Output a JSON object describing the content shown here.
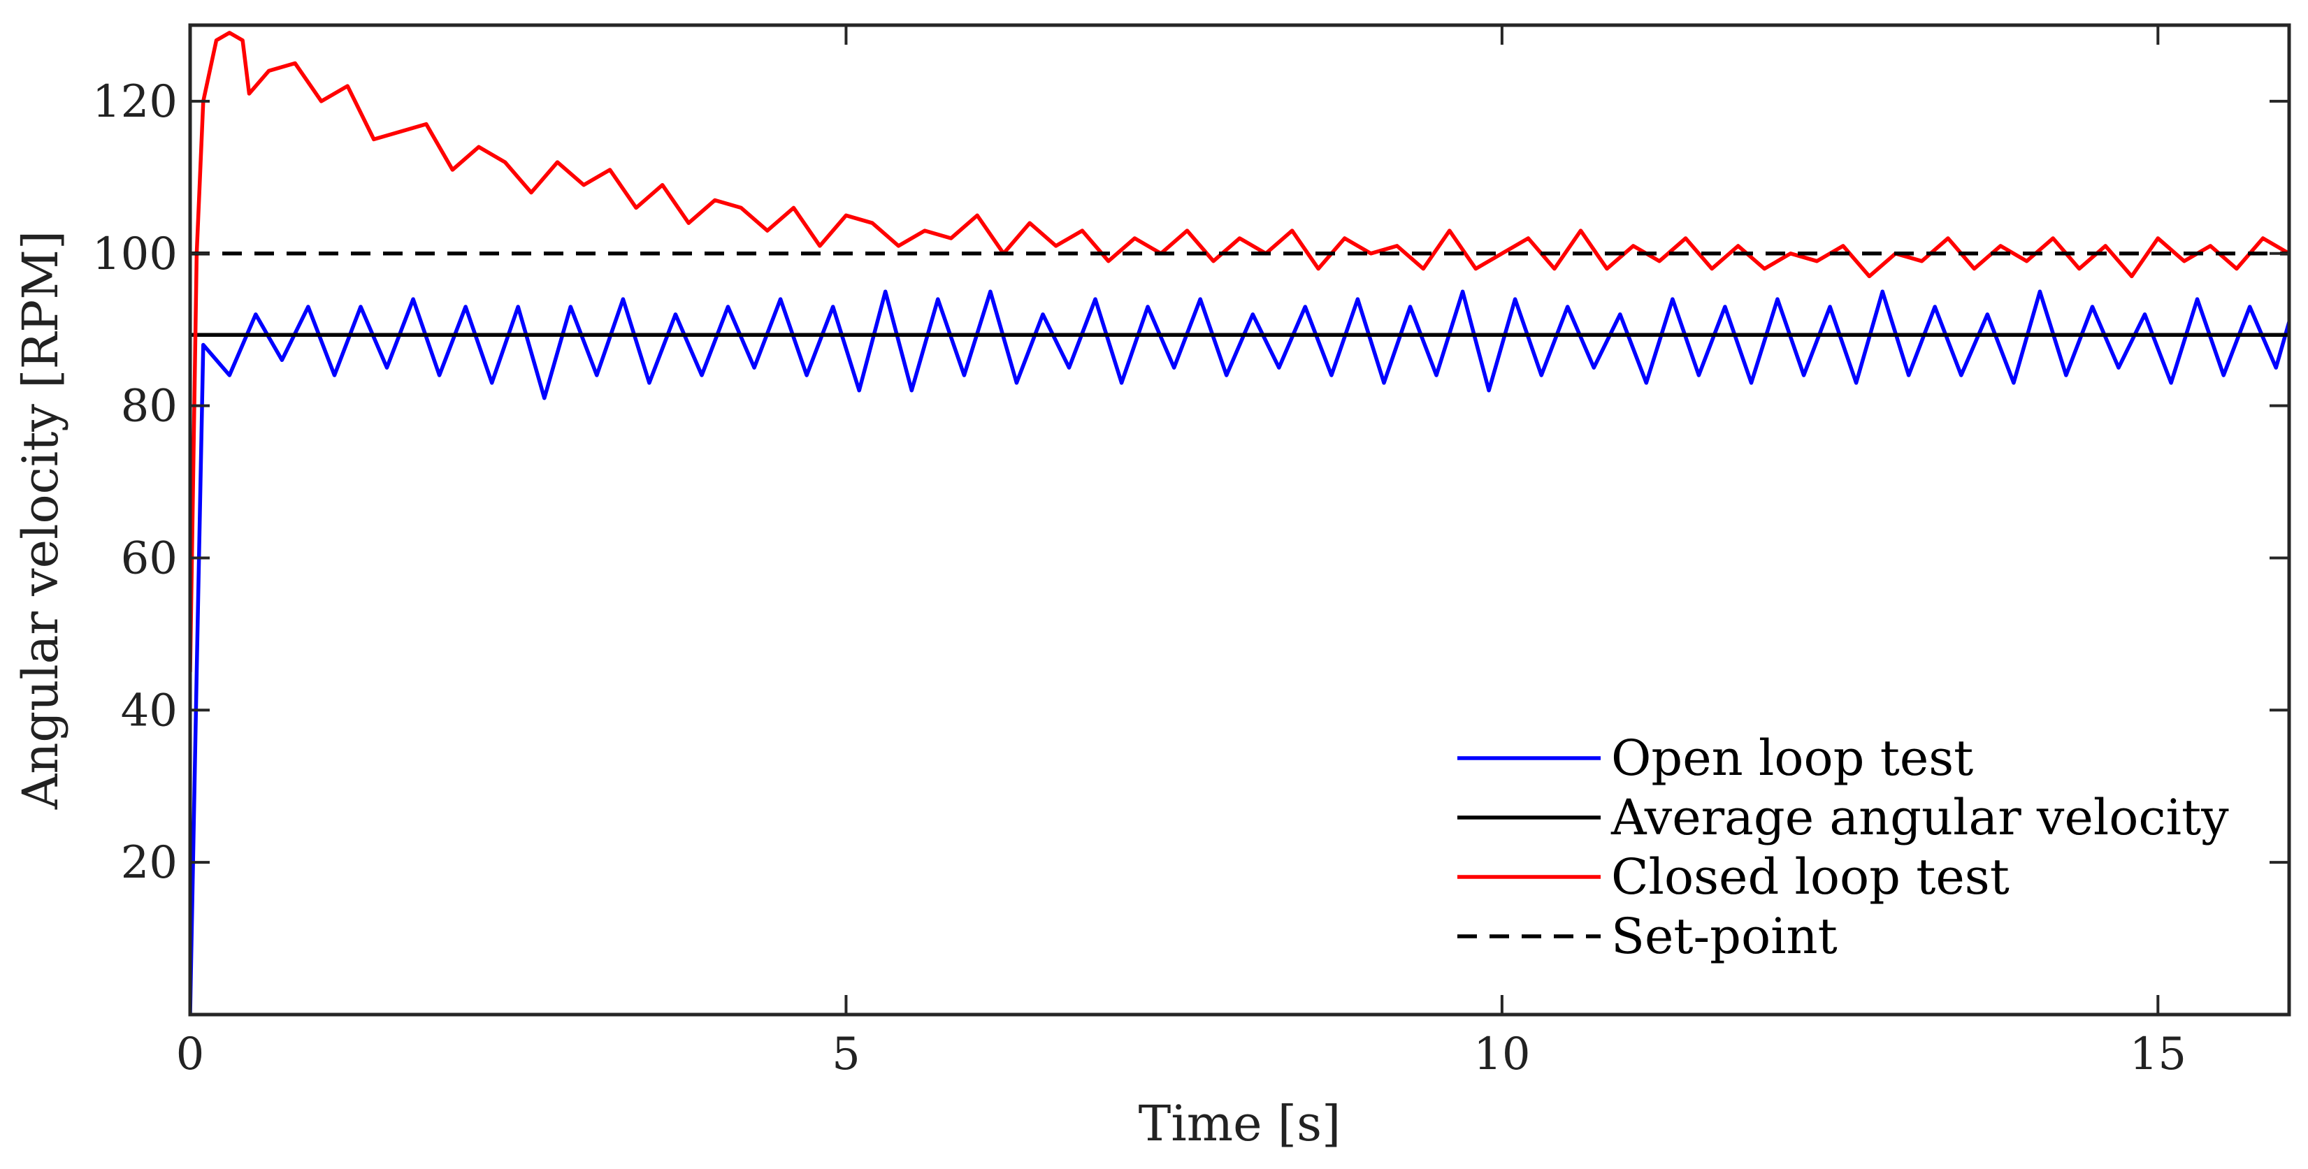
{
  "chart_data": {
    "type": "line",
    "title": "",
    "xlabel": "Time [s]",
    "ylabel": "Angular velocity [RPM]",
    "xlim": [
      0,
      16
    ],
    "ylim": [
      0,
      130
    ],
    "grid": false,
    "legend_position": "bottom-right",
    "x_ticks": [
      0,
      5,
      10,
      15
    ],
    "x_tick_labels": [
      "0",
      "5",
      "10",
      "15"
    ],
    "y_ticks": [
      20,
      40,
      60,
      80,
      100,
      120
    ],
    "y_tick_labels": [
      "20",
      "40",
      "60",
      "80",
      "100",
      "120"
    ],
    "series": [
      {
        "name": "Open loop test",
        "color": "#0000ff",
        "style": "solid",
        "x": [
          0,
          0.05,
          0.1,
          0.3,
          0.5,
          0.7,
          0.9,
          1.1,
          1.3,
          1.5,
          1.7,
          1.9,
          2.1,
          2.3,
          2.5,
          2.7,
          2.9,
          3.1,
          3.3,
          3.5,
          3.7,
          3.9,
          4.1,
          4.3,
          4.5,
          4.7,
          4.9,
          5.1,
          5.3,
          5.5,
          5.7,
          5.9,
          6.1,
          6.3,
          6.5,
          6.7,
          6.9,
          7.1,
          7.3,
          7.5,
          7.7,
          7.9,
          8.1,
          8.3,
          8.5,
          8.7,
          8.9,
          9.1,
          9.3,
          9.5,
          9.7,
          9.9,
          10.1,
          10.3,
          10.5,
          10.7,
          10.9,
          11.1,
          11.3,
          11.5,
          11.7,
          11.9,
          12.1,
          12.3,
          12.5,
          12.7,
          12.9,
          13.1,
          13.3,
          13.5,
          13.7,
          13.9,
          14.1,
          14.3,
          14.5,
          14.7,
          14.9,
          15.1,
          15.3,
          15.5,
          15.7,
          15.9,
          16
        ],
        "values": [
          0,
          45,
          88,
          84,
          92,
          86,
          93,
          84,
          93,
          85,
          94,
          84,
          93,
          83,
          93,
          81,
          93,
          84,
          94,
          83,
          92,
          84,
          93,
          85,
          94,
          84,
          93,
          82,
          95,
          82,
          94,
          84,
          95,
          83,
          92,
          85,
          94,
          83,
          93,
          85,
          94,
          84,
          92,
          85,
          93,
          84,
          94,
          83,
          93,
          84,
          95,
          82,
          94,
          84,
          93,
          85,
          92,
          83,
          94,
          84,
          93,
          83,
          94,
          84,
          93,
          83,
          95,
          84,
          93,
          84,
          92,
          83,
          95,
          84,
          93,
          85,
          92,
          83,
          94,
          84,
          93,
          85,
          91
        ]
      },
      {
        "name": "Average angular velocity",
        "color": "#000000",
        "style": "solid",
        "x": [
          0,
          16
        ],
        "values": [
          89.3,
          89.3
        ]
      },
      {
        "name": "Closed loop test",
        "color": "#ff0000",
        "style": "solid",
        "x": [
          0,
          0.05,
          0.1,
          0.2,
          0.3,
          0.4,
          0.45,
          0.6,
          0.8,
          1.0,
          1.2,
          1.4,
          1.6,
          1.8,
          2.0,
          2.2,
          2.4,
          2.6,
          2.8,
          3.0,
          3.2,
          3.4,
          3.6,
          3.8,
          4.0,
          4.2,
          4.4,
          4.6,
          4.8,
          5.0,
          5.2,
          5.4,
          5.6,
          5.8,
          6.0,
          6.2,
          6.4,
          6.6,
          6.8,
          7.0,
          7.2,
          7.4,
          7.6,
          7.8,
          8.0,
          8.2,
          8.4,
          8.6,
          8.8,
          9.0,
          9.2,
          9.4,
          9.6,
          9.8,
          10.0,
          10.2,
          10.4,
          10.6,
          10.8,
          11.0,
          11.2,
          11.4,
          11.6,
          11.8,
          12.0,
          12.2,
          12.4,
          12.6,
          12.8,
          13.0,
          13.2,
          13.4,
          13.6,
          13.8,
          14.0,
          14.2,
          14.4,
          14.6,
          14.8,
          15.0,
          15.2,
          15.4,
          15.6,
          15.8,
          16
        ],
        "values": [
          45,
          100,
          120,
          128,
          129,
          128,
          121,
          124,
          125,
          120,
          122,
          115,
          116,
          117,
          111,
          114,
          112,
          108,
          112,
          109,
          111,
          106,
          109,
          104,
          107,
          106,
          103,
          106,
          101,
          105,
          104,
          101,
          103,
          102,
          105,
          100,
          104,
          101,
          103,
          99,
          102,
          100,
          103,
          99,
          102,
          100,
          103,
          98,
          102,
          100,
          101,
          98,
          103,
          98,
          100,
          102,
          98,
          103,
          98,
          101,
          99,
          102,
          98,
          101,
          98,
          100,
          99,
          101,
          97,
          100,
          99,
          102,
          98,
          101,
          99,
          102,
          98,
          101,
          97,
          102,
          99,
          101,
          98,
          102,
          100
        ]
      },
      {
        "name": "Set-point",
        "color": "#000000",
        "style": "dashed",
        "x": [
          0,
          16
        ],
        "values": [
          100,
          100
        ]
      }
    ]
  }
}
